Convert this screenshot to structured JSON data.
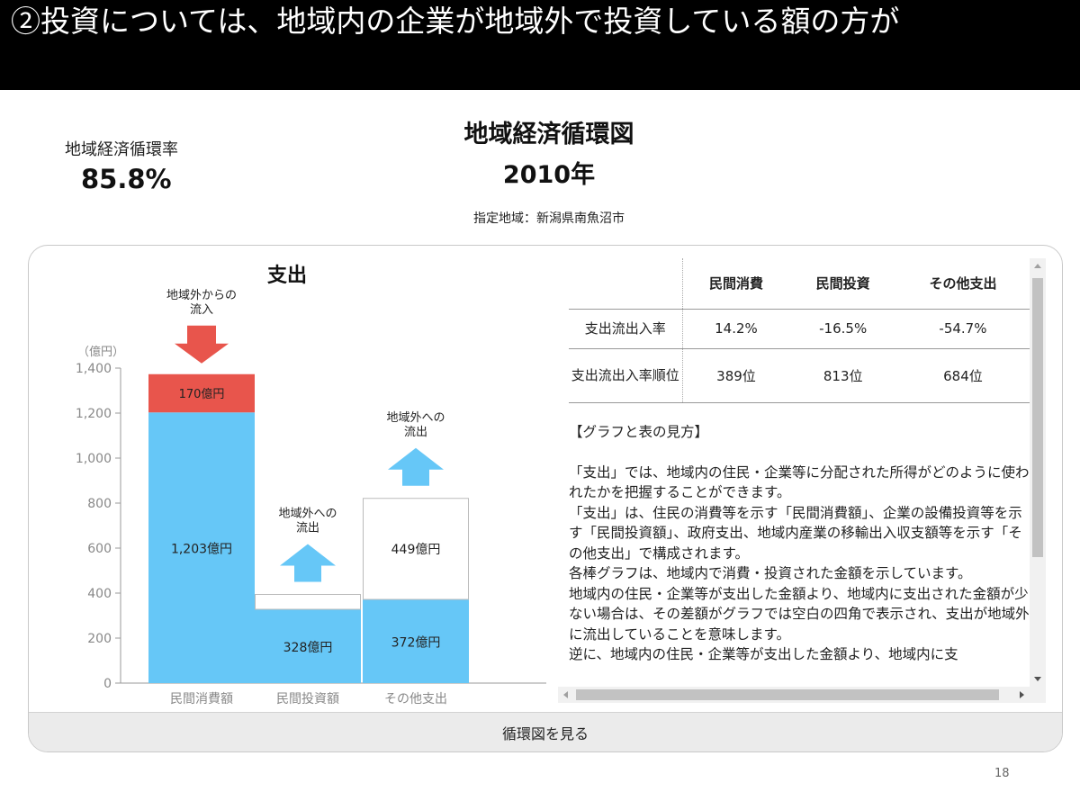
{
  "header": {
    "title": "②投資については、地域内の企業が地域外で投資している額の方が"
  },
  "summary": {
    "rate_label": "地域経済循環率",
    "rate_value": "85.8%",
    "title": "地域経済循環図",
    "year": "2010年",
    "region": "指定地域：新潟県南魚沼市"
  },
  "chart_data": {
    "type": "bar",
    "title": "支出",
    "ylabel": "（億円）",
    "ylim": [
      0,
      1400
    ],
    "yticks": [
      "0",
      "200",
      "400",
      "600",
      "800",
      "1,000",
      "1,200",
      "1,400"
    ],
    "categories": [
      "民間消費額",
      "民間投資額",
      "その他支出"
    ],
    "series": [
      {
        "values": [
          1203,
          328,
          372
        ],
        "labels": [
          "1,203億円",
          "328億円",
          "372億円"
        ]
      },
      {
        "values": [
          170,
          0,
          0
        ],
        "labels": [
          "170億円",
          "",
          ""
        ]
      },
      {
        "values": [
          0,
          66,
          449
        ],
        "labels": [
          "",
          "",
          "449億円"
        ]
      }
    ],
    "annotations": [
      "地域外からの流入",
      "地域外への流出",
      "地域外への流出"
    ],
    "colors": {
      "base": "#66c7f7",
      "inflow": "#e8554c",
      "outflow": "#ffffff",
      "arrow_out": "#66c7f7",
      "arrow_in": "#e8554c"
    }
  },
  "table": {
    "columns": [
      "民間消費",
      "民間投資",
      "その他支出"
    ],
    "rows": [
      {
        "label": "支出流出入率",
        "values": [
          "14.2%",
          "-16.5%",
          "-54.7%"
        ]
      },
      {
        "label": "支出流出入率順位",
        "values": [
          "389位",
          "813位",
          "684位"
        ]
      }
    ]
  },
  "explanation": {
    "heading": "【グラフと表の見方】",
    "paragraphs": [
      "「支出」では、地域内の住民・企業等に分配された所得がどのように使われたかを把握することができます。",
      "「支出」は、住民の消費等を示す「民間消費額」、企業の設備投資等を示す「民間投資額」、政府支出、地域内産業の移輸出入収支額等を示す「その他支出」で構成されます。",
      "各棒グラフは、地域内で消費・投資された金額を示しています。",
      "地域内の住民・企業等が支出した金額より、地域内に支出された金額が少ない場合は、その差額がグラフでは空白の四角で表示され、支出が地域外に流出していることを意味します。",
      "逆に、地域内の住民・企業等が支出した金額より、地域内に支"
    ]
  },
  "footer": {
    "button": "循環図を見る"
  },
  "page_number": "18"
}
